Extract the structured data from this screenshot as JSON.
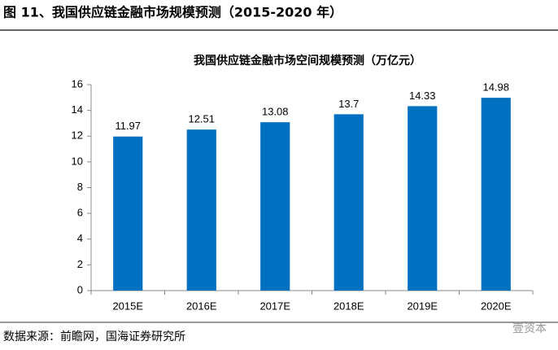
{
  "header": {
    "title": "图 11、我国供应链金融市场规模预测（2015-2020 年）"
  },
  "chart_data": {
    "type": "bar",
    "title": "我国供应链金融市场空间规模预测（万亿元）",
    "categories": [
      "2015E",
      "2016E",
      "2017E",
      "2018E",
      "2019E",
      "2020E"
    ],
    "values": [
      11.97,
      12.51,
      13.08,
      13.7,
      14.33,
      14.98
    ],
    "color": "#0070c0",
    "ylim": [
      0,
      16
    ],
    "yticks": [
      0,
      2,
      4,
      6,
      8,
      10,
      12,
      14,
      16
    ]
  },
  "footer": {
    "source": "数据来源：前瞻网，国海证券研究所",
    "watermark": "壹资本"
  }
}
